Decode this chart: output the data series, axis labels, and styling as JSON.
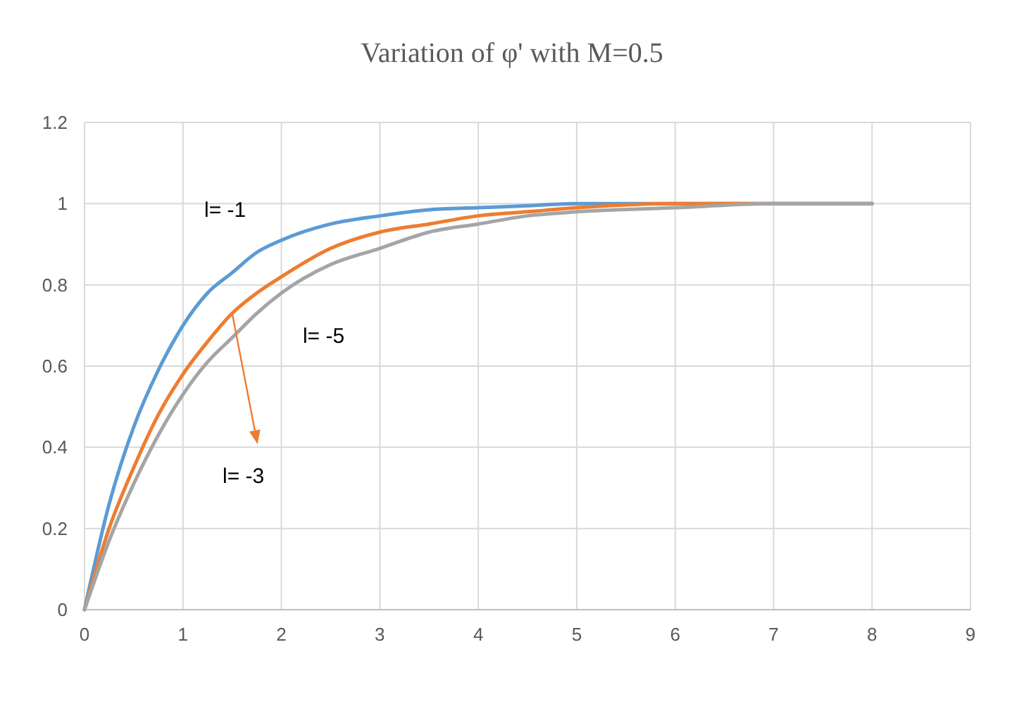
{
  "chart_data": {
    "type": "line",
    "title": "Variation of φ' with M=0.5",
    "x": [
      0,
      0.25,
      0.5,
      0.75,
      1,
      1.25,
      1.5,
      1.75,
      2,
      2.5,
      3,
      3.5,
      4,
      4.5,
      5,
      6,
      7,
      8
    ],
    "series": [
      {
        "name": "l= -1",
        "color": "#5b9bd5",
        "values": [
          0,
          0.26,
          0.45,
          0.59,
          0.7,
          0.78,
          0.83,
          0.88,
          0.91,
          0.95,
          0.97,
          0.985,
          0.99,
          0.995,
          1,
          1,
          1,
          1
        ]
      },
      {
        "name": "l= -3",
        "color": "#ed7d31",
        "values": [
          0,
          0.2,
          0.35,
          0.48,
          0.58,
          0.66,
          0.73,
          0.78,
          0.82,
          0.89,
          0.93,
          0.95,
          0.97,
          0.98,
          0.99,
          1,
          1,
          1
        ]
      },
      {
        "name": "l= -5",
        "color": "#a5a5a5",
        "values": [
          0,
          0.17,
          0.31,
          0.43,
          0.53,
          0.61,
          0.67,
          0.73,
          0.78,
          0.85,
          0.89,
          0.93,
          0.95,
          0.97,
          0.98,
          0.99,
          1,
          1
        ]
      }
    ],
    "xlim": [
      0,
      9
    ],
    "xticks": [
      0,
      1,
      2,
      3,
      4,
      5,
      6,
      7,
      8,
      9
    ],
    "ylim": [
      0,
      1.2
    ],
    "yticks": [
      0,
      0.2,
      0.4,
      0.6,
      0.8,
      1,
      1.2
    ],
    "grid": true,
    "marker": "none",
    "line_style": "solid"
  }
}
